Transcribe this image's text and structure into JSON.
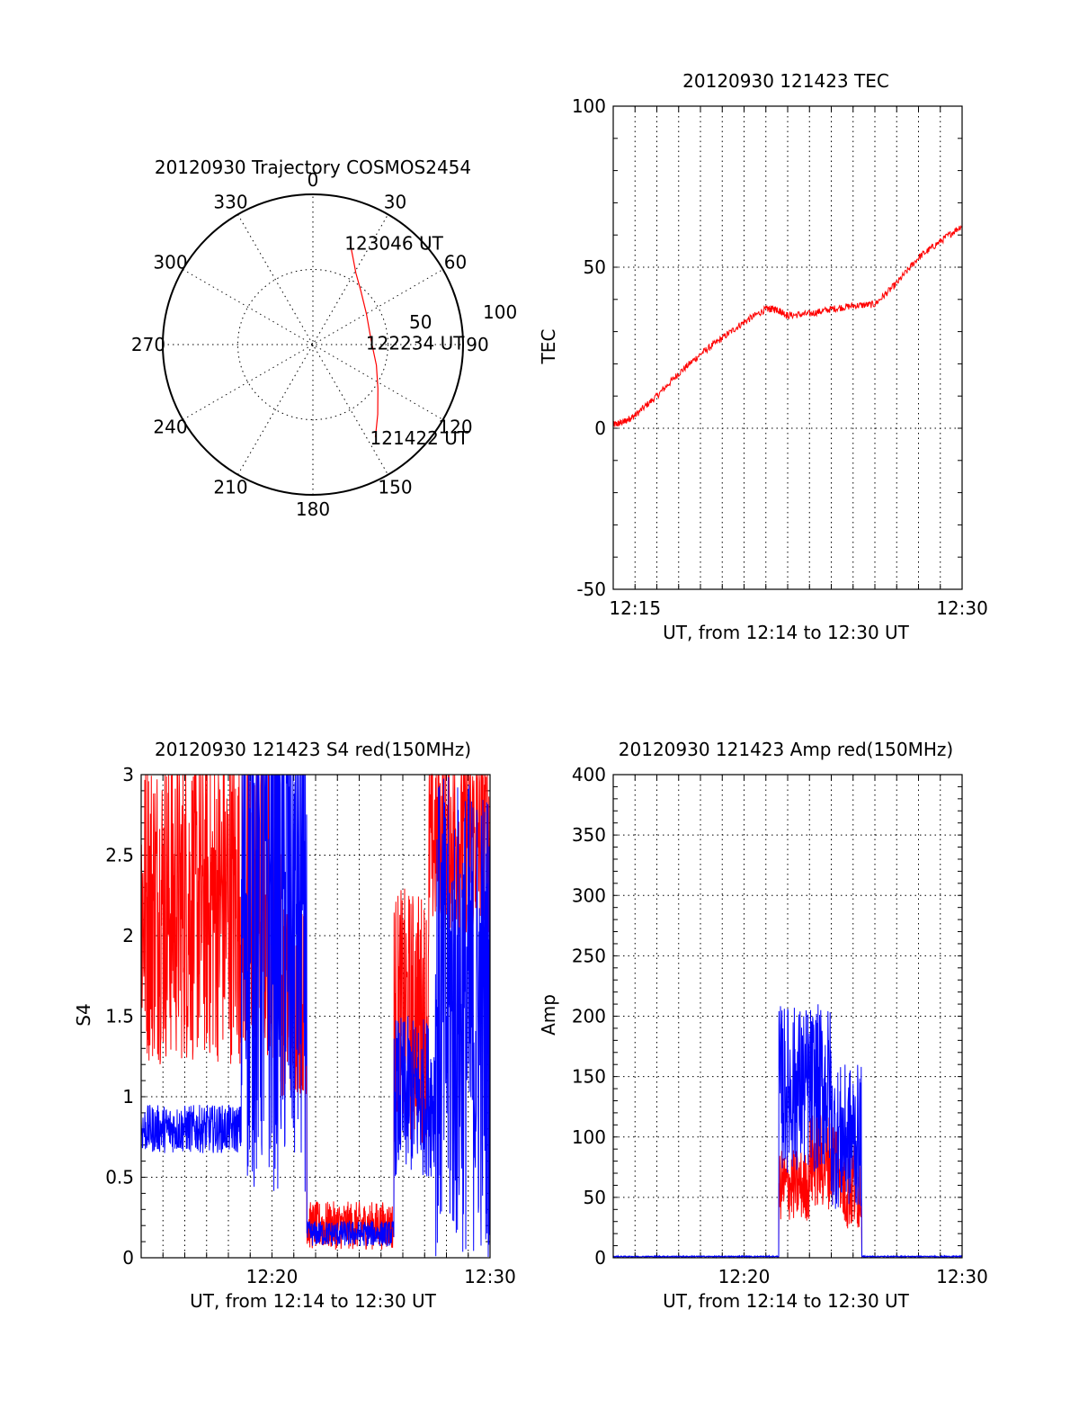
{
  "chart_data": [
    {
      "type": "polar",
      "title": "20120930 Trajectory COSMOS2454",
      "angle_labels": [
        "0",
        "30",
        "60",
        "90",
        "120",
        "150",
        "180",
        "210",
        "240",
        "270",
        "300",
        "330"
      ],
      "radial_labels": [
        "50",
        "100"
      ],
      "trajectory_color": "#ff0000",
      "trajectory": [
        {
          "az": 20,
          "el": 25
        },
        {
          "az": 25,
          "el": 33
        },
        {
          "az": 31,
          "el": 40
        },
        {
          "az": 42,
          "el": 47
        },
        {
          "az": 60,
          "el": 53
        },
        {
          "az": 86,
          "el": 55
        },
        {
          "az": 108,
          "el": 50
        },
        {
          "az": 124,
          "el": 43
        },
        {
          "az": 137,
          "el": 33
        },
        {
          "az": 146,
          "el": 23
        }
      ],
      "annotations": [
        {
          "text": "123046 UT",
          "az": 20,
          "el": 25
        },
        {
          "text": "122234 UT",
          "az": 88,
          "el": 55
        },
        {
          "text": "121422 UT",
          "az": 146,
          "el": 23
        }
      ]
    },
    {
      "type": "line",
      "title": "20120930 121423 TEC",
      "xlabel": "UT, from 12:14 to 12:30 UT",
      "ylabel": "TEC",
      "xlim": [
        14.0,
        30.0
      ],
      "ylim": [
        -50,
        100
      ],
      "yticks": [
        100,
        50,
        0,
        -50
      ],
      "xticks": [
        {
          "v": 15,
          "label": "12:15"
        },
        {
          "v": 30,
          "label": "12:30"
        }
      ],
      "grid": true,
      "series": [
        {
          "color": "#ff0000",
          "points": [
            [
              14.0,
              1
            ],
            [
              14.5,
              2
            ],
            [
              15,
              4
            ],
            [
              16,
              10
            ],
            [
              17,
              17
            ],
            [
              18,
              23
            ],
            [
              19,
              28
            ],
            [
              20,
              33
            ],
            [
              21,
              37
            ],
            [
              21.5,
              37
            ],
            [
              22,
              35
            ],
            [
              23,
              35.5
            ],
            [
              24,
              37
            ],
            [
              25,
              38
            ],
            [
              26,
              38.5
            ],
            [
              27,
              45
            ],
            [
              28,
              53
            ],
            [
              29,
              58
            ],
            [
              30,
              63
            ]
          ]
        }
      ]
    },
    {
      "type": "line",
      "title": "20120930 121423 S4 red(150MHz)",
      "xlabel": "UT, from 12:14 to 12:30 UT",
      "ylabel": "S4",
      "xlim": [
        14.0,
        30.0
      ],
      "ylim": [
        0,
        3
      ],
      "yticks": [
        3,
        2.5,
        2,
        1.5,
        1,
        0.5,
        0
      ],
      "xticks": [
        {
          "v": 20,
          "label": "12:20"
        },
        {
          "v": 30,
          "label": "12:30"
        }
      ],
      "grid": true,
      "series": [
        {
          "color": "#ff0000",
          "segments": [
            [
              14.0,
              20.4,
              2.2,
              1.0
            ],
            [
              20.4,
              21.6,
              1.6,
              0.6
            ],
            [
              21.6,
              25.6,
              0.2,
              0.15
            ],
            [
              25.6,
              27.2,
              1.5,
              0.8
            ],
            [
              27.2,
              30.0,
              2.6,
              0.6
            ]
          ]
        },
        {
          "color": "#0000ff",
          "segments": [
            [
              14.0,
              18.6,
              0.8,
              0.15
            ],
            [
              18.6,
              21.6,
              2.2,
              1.8
            ],
            [
              21.6,
              25.6,
              0.15,
              0.08
            ],
            [
              25.6,
              27.5,
              1.0,
              0.5
            ],
            [
              27.5,
              30.0,
              1.5,
              1.5
            ]
          ]
        }
      ]
    },
    {
      "type": "line",
      "title": "20120930 121423 Amp red(150MHz)",
      "xlabel": "UT, from 12:14 to 12:30 UT",
      "ylabel": "Amp",
      "xlim": [
        14.0,
        30.0
      ],
      "ylim": [
        0,
        400
      ],
      "yticks": [
        400,
        350,
        300,
        250,
        200,
        150,
        100,
        50,
        0
      ],
      "xticks": [
        {
          "v": 20,
          "label": "12:20"
        },
        {
          "v": 30,
          "label": "12:30"
        }
      ],
      "grid": true,
      "series": [
        {
          "color": "#ff0000",
          "segments": [
            [
              14.0,
              21.6,
              0,
              0
            ],
            [
              21.6,
              23.0,
              60,
              30
            ],
            [
              23.0,
              24.5,
              80,
              40
            ],
            [
              24.5,
              25.4,
              60,
              40
            ],
            [
              25.4,
              30.0,
              0,
              0
            ]
          ]
        },
        {
          "color": "#0000ff",
          "segments": [
            [
              14.0,
              21.6,
              1,
              0.5
            ],
            [
              21.6,
              22.5,
              140,
              70
            ],
            [
              22.5,
              24.0,
              140,
              70
            ],
            [
              24.0,
              25.4,
              100,
              60
            ],
            [
              25.4,
              30.0,
              1,
              0.5
            ]
          ]
        }
      ]
    }
  ]
}
